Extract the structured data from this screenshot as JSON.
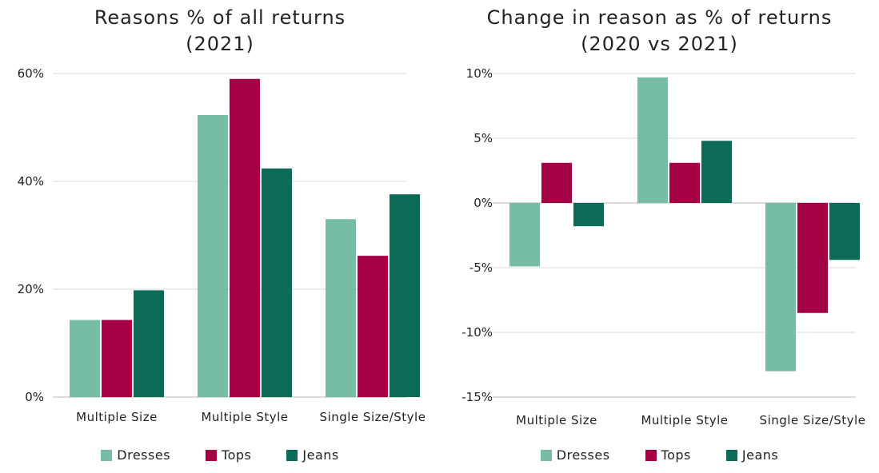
{
  "colors": {
    "Dresses": "#77bca6",
    "Tops": "#a40044",
    "Jeans": "#0d6b58",
    "grid": "#d9d9d9"
  },
  "chart_data": [
    {
      "type": "bar",
      "title_lines": [
        "Reasons % of all returns",
        "(2021)"
      ],
      "categories": [
        "Multiple Size",
        "Multiple Style",
        "Single Size/Style"
      ],
      "series": [
        {
          "name": "Dresses",
          "values": [
            14.3,
            52.3,
            33.0
          ]
        },
        {
          "name": "Tops",
          "values": [
            14.3,
            59.0,
            26.2
          ]
        },
        {
          "name": "Jeans",
          "values": [
            19.8,
            42.4,
            37.6
          ]
        }
      ],
      "ylim": [
        0,
        60
      ],
      "yticks": [
        0,
        20,
        40,
        60
      ],
      "ytick_labels": [
        "0%",
        "20%",
        "40%",
        "60%"
      ],
      "grid": true,
      "legend": "bottom"
    },
    {
      "type": "bar",
      "title_lines": [
        "Change in reason as % of returns",
        "(2020 vs 2021)"
      ],
      "categories": [
        "Multiple Size",
        "Multiple Style",
        "Single Size/Style"
      ],
      "series": [
        {
          "name": "Dresses",
          "values": [
            -4.9,
            9.7,
            -13.0
          ]
        },
        {
          "name": "Tops",
          "values": [
            3.1,
            3.1,
            -8.5
          ]
        },
        {
          "name": "Jeans",
          "values": [
            -1.8,
            4.8,
            -4.4
          ]
        }
      ],
      "ylim": [
        -15,
        10
      ],
      "yticks": [
        -15,
        -10,
        -5,
        0,
        5,
        10
      ],
      "ytick_labels": [
        "-15%",
        "-10%",
        "-5%",
        "0%",
        "5%",
        "10%"
      ],
      "grid": true,
      "legend": "bottom"
    }
  ]
}
